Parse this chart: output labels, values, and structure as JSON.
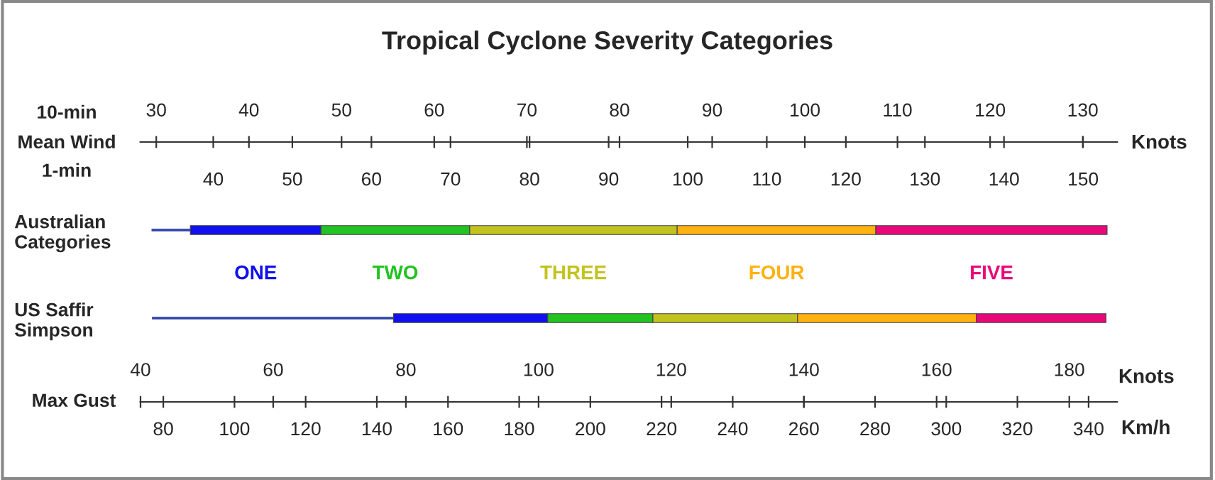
{
  "chart_data": [
    {
      "type": "bar",
      "orientation": "horizontal",
      "title": "Tropical Cyclone Severity Categories",
      "categories": [
        "Australian\nCategories"
      ],
      "series": [
        {
          "color": "#3344aa",
          "base": [
            76.8
          ],
          "values": [
            10.8
          ]
        },
        {
          "name": "ONE",
          "color": "#1010f0",
          "base": [
            87.6
          ],
          "values": [
            36.7
          ]
        },
        {
          "name": "TWO",
          "color": "#22c322",
          "base": [
            124.3
          ],
          "values": [
            41.8
          ]
        },
        {
          "name": "THREE",
          "color": "#c3c320",
          "base": [
            166.1
          ],
          "values": [
            58.3
          ]
        },
        {
          "name": "FOUR",
          "color": "#ffb210",
          "base": [
            224.4
          ],
          "values": [
            55.8
          ]
        },
        {
          "name": "FIVE",
          "color": "#e8087a",
          "base": [
            280.2
          ],
          "values": [
            65.0
          ]
        }
      ],
      "xlim": [
        73.6,
        348.0
      ],
      "xticks": [
        80,
        100,
        120,
        140,
        160,
        180,
        200,
        220,
        240,
        260,
        280,
        300,
        320,
        340
      ],
      "xlabel": "Km/h",
      "x2lim": [
        28.3,
        133.7
      ],
      "x2ticks": [
        30,
        40,
        50,
        60,
        70,
        80,
        90,
        100,
        110,
        120,
        130
      ],
      "x2label": "Knots",
      "annotations": [
        "10-min",
        "Mean Wind"
      ],
      "grid": false,
      "legend": false
    },
    {
      "type": "bar",
      "orientation": "horizontal",
      "categories": [
        "US Saffir\nSimpson"
      ],
      "series": [
        {
          "color": "#3344aa",
          "axis": "x2",
          "base": [
            32.3
          ],
          "values": [
            30.5
          ]
        },
        {
          "color": "#1010f0",
          "axis": "x2",
          "base": [
            62.8
          ],
          "values": [
            19.5
          ]
        },
        {
          "color": "#22c322",
          "axis": "x2",
          "base": [
            82.3
          ],
          "values": [
            13.3
          ]
        },
        {
          "color": "#c3c320",
          "axis": "x2",
          "base": [
            95.6
          ],
          "values": [
            18.3
          ]
        },
        {
          "color": "#ffb210",
          "axis": "x2",
          "base": [
            113.9
          ],
          "values": [
            22.6
          ]
        },
        {
          "color": "#e8087a",
          "axis": "x2",
          "base": [
            136.5
          ],
          "values": [
            16.4
          ]
        }
      ],
      "xlim": [
        40.0,
        187.2
      ],
      "xticks": [
        40,
        60,
        80,
        100,
        120,
        140,
        160,
        180
      ],
      "xlabel": "Knots",
      "x2lim": [
        30.8,
        154.3
      ],
      "x2ticks": [
        40,
        50,
        60,
        70,
        80,
        90,
        100,
        110,
        120,
        130,
        140,
        150
      ],
      "x2label": "1-min",
      "annotations": [
        "Max Gust"
      ],
      "grid": false,
      "legend": false
    }
  ]
}
